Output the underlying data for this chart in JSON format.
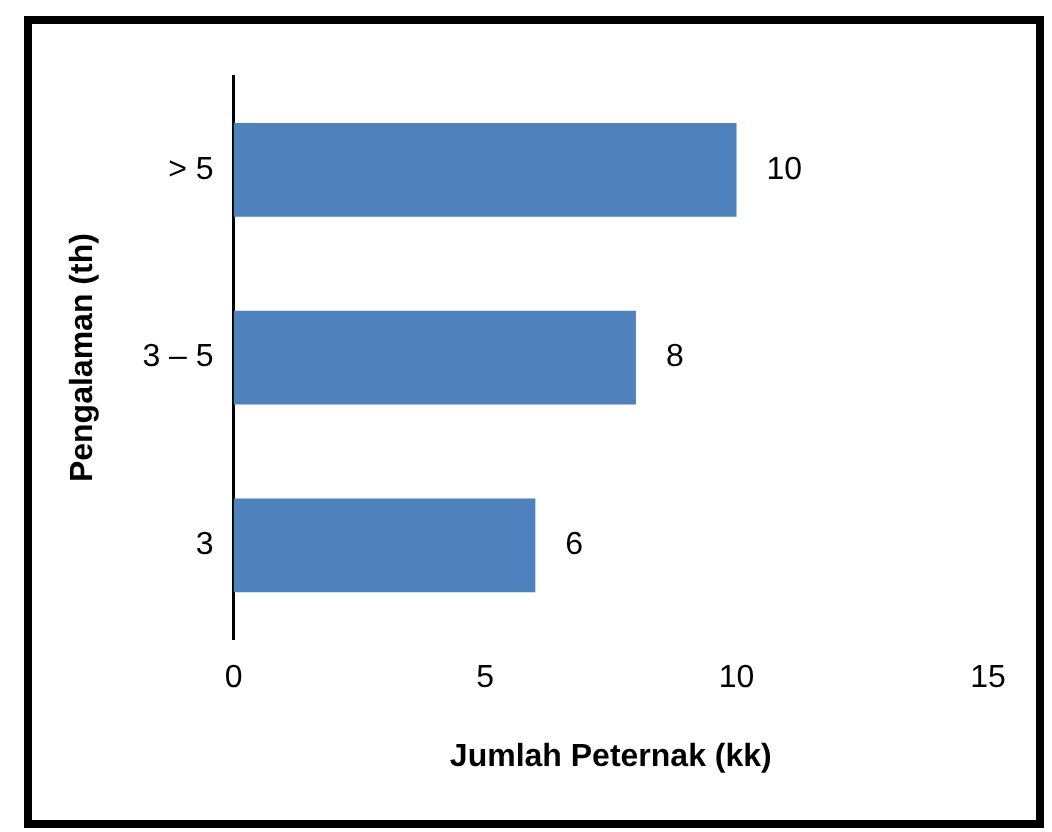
{
  "chart_data": {
    "type": "bar",
    "orientation": "horizontal",
    "categories": [
      "> 5",
      "3 – 5",
      "3"
    ],
    "values": [
      10,
      8,
      6
    ],
    "color": "#4f81bd",
    "xlim": [
      0,
      15
    ],
    "xticks": [
      0,
      5,
      10,
      15
    ],
    "xlabel": "Jumlah Peternak (kk)",
    "ylabel": "Pengalaman (th)",
    "grid": false,
    "legend": false,
    "data_labels": true
  }
}
